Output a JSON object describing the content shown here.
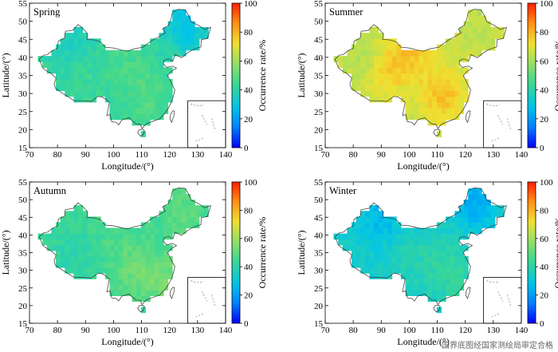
{
  "figure": {
    "credit_text": "国界底图经国家测绘局审定合格",
    "colormap": [
      "#0000ff",
      "#0080ff",
      "#00c4e8",
      "#40d890",
      "#a0e060",
      "#f0e030",
      "#ff9018",
      "#ff2000"
    ]
  },
  "chart_data": [
    {
      "type": "heatmap",
      "title": "Spring",
      "xlabel": "Longitude/(°)",
      "ylabel": "Latitude/(°)",
      "xlim": [
        70,
        140
      ],
      "ylim": [
        15,
        55
      ],
      "xticks": [
        "70",
        "80",
        "90",
        "100",
        "110",
        "120",
        "130",
        "140"
      ],
      "yticks": [
        "15",
        "20",
        "25",
        "30",
        "35",
        "40",
        "45",
        "50",
        "55"
      ],
      "colorbar": {
        "label": "Occurrence rate/%",
        "range": [
          0,
          100
        ],
        "ticks": [
          "0",
          "20",
          "40",
          "60",
          "80",
          "100"
        ]
      },
      "base_value": 42,
      "value_range": [
        28,
        55
      ],
      "hotspots": [
        {
          "lon": 126,
          "lat": 49,
          "value": 28
        },
        {
          "lon": 85,
          "lat": 45,
          "value": 36
        },
        {
          "lon": 105,
          "lat": 39,
          "value": 46
        },
        {
          "lon": 112,
          "lat": 28,
          "value": 48
        },
        {
          "lon": 90,
          "lat": 33,
          "value": 44
        }
      ]
    },
    {
      "type": "heatmap",
      "title": "Summer",
      "xlabel": "Longitude/(°)",
      "ylabel": "Latitude/(°)",
      "xlim": [
        70,
        140
      ],
      "ylim": [
        15,
        55
      ],
      "xticks": [
        "70",
        "80",
        "90",
        "100",
        "110",
        "120",
        "130",
        "140"
      ],
      "yticks": [
        "15",
        "20",
        "25",
        "30",
        "35",
        "40",
        "45",
        "50",
        "55"
      ],
      "colorbar": {
        "label": "Occurrence rate/%",
        "range": [
          0,
          100
        ],
        "ticks": [
          "0",
          "20",
          "40",
          "60",
          "80",
          "100"
        ]
      },
      "base_value": 66,
      "value_range": [
        58,
        82
      ],
      "hotspots": [
        {
          "lon": 112,
          "lat": 30,
          "value": 78
        },
        {
          "lon": 92,
          "lat": 36,
          "value": 74
        },
        {
          "lon": 100,
          "lat": 42,
          "value": 76
        },
        {
          "lon": 85,
          "lat": 40,
          "value": 62
        },
        {
          "lon": 125,
          "lat": 48,
          "value": 64
        }
      ]
    },
    {
      "type": "heatmap",
      "title": "Autumn",
      "xlabel": "Longitude/(°)",
      "ylabel": "Latitude/(°)",
      "xlim": [
        70,
        140
      ],
      "ylim": [
        15,
        55
      ],
      "xticks": [
        "70",
        "80",
        "90",
        "100",
        "110",
        "120",
        "130",
        "140"
      ],
      "yticks": [
        "15",
        "20",
        "25",
        "30",
        "35",
        "40",
        "45",
        "50",
        "55"
      ],
      "colorbar": {
        "label": "Occurrence rate/%",
        "range": [
          0,
          100
        ],
        "ticks": [
          "0",
          "20",
          "40",
          "60",
          "80",
          "100"
        ]
      },
      "base_value": 44,
      "value_range": [
        34,
        56
      ],
      "hotspots": [
        {
          "lon": 108,
          "lat": 30,
          "value": 52
        },
        {
          "lon": 120,
          "lat": 26,
          "value": 54
        },
        {
          "lon": 125,
          "lat": 46,
          "value": 50
        },
        {
          "lon": 85,
          "lat": 34,
          "value": 40
        },
        {
          "lon": 100,
          "lat": 40,
          "value": 46
        }
      ]
    },
    {
      "type": "heatmap",
      "title": "Winter",
      "xlabel": "Longitude/(°)",
      "ylabel": "Latitude/(°)",
      "xlim": [
        70,
        140
      ],
      "ylim": [
        15,
        55
      ],
      "xticks": [
        "70",
        "80",
        "90",
        "100",
        "110",
        "120",
        "130",
        "140"
      ],
      "yticks": [
        "15",
        "20",
        "25",
        "30",
        "35",
        "40",
        "45",
        "50",
        "55"
      ],
      "colorbar": {
        "label": "Occurrence rate/%",
        "range": [
          0,
          100
        ],
        "ticks": [
          "0",
          "20",
          "40",
          "60",
          "80",
          "100"
        ]
      },
      "base_value": 34,
      "value_range": [
        22,
        44
      ],
      "hotspots": [
        {
          "lon": 124,
          "lat": 50,
          "value": 22
        },
        {
          "lon": 90,
          "lat": 45,
          "value": 26
        },
        {
          "lon": 112,
          "lat": 32,
          "value": 40
        },
        {
          "lon": 100,
          "lat": 33,
          "value": 38
        },
        {
          "lon": 118,
          "lat": 26,
          "value": 40
        }
      ]
    }
  ]
}
